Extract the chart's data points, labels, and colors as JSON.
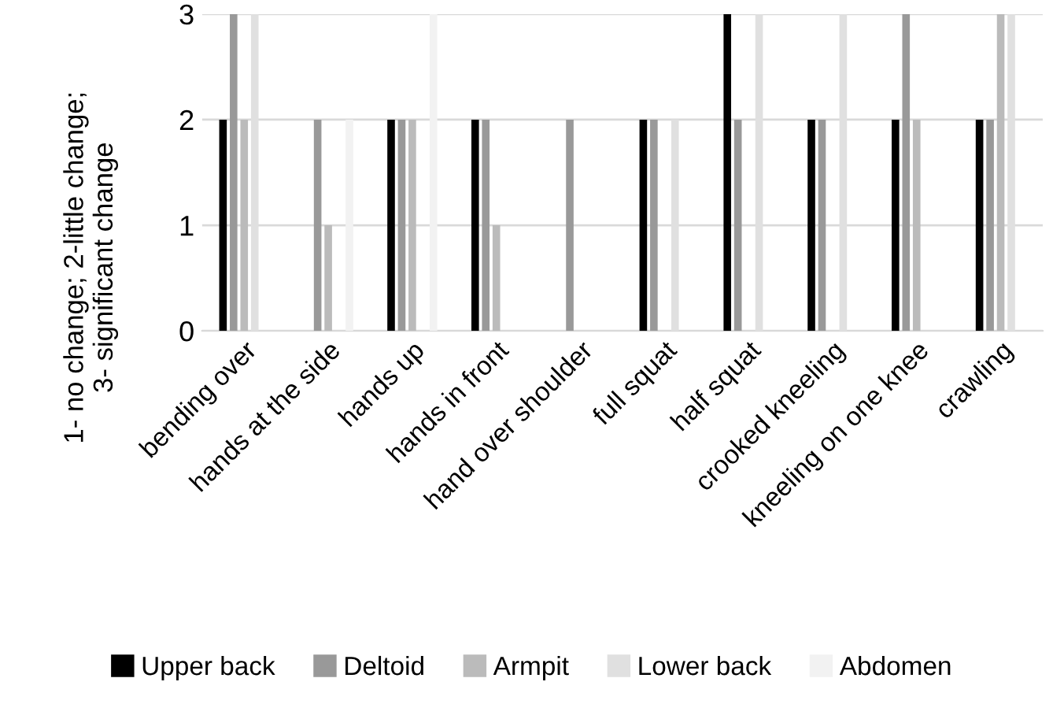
{
  "chart_data": {
    "type": "bar",
    "ylabel": "1- no change; 2-little change;\n3- significant change",
    "categories": [
      "bending over",
      "hands at the side",
      "hands up",
      "hands in front",
      "hand over shoulder",
      "full squat",
      "half squat",
      "crooked kneeling",
      "kneeling on one knee",
      "crawling"
    ],
    "series": [
      {
        "name": "Upper back",
        "color": "#000000",
        "values": [
          2,
          0,
          2,
          2,
          0,
          2,
          3,
          2,
          2,
          2
        ]
      },
      {
        "name": "Deltoid",
        "color": "#999999",
        "values": [
          3,
          2,
          2,
          2,
          2,
          2,
          2,
          2,
          3,
          2
        ]
      },
      {
        "name": "Armpit",
        "color": "#bbbbbb",
        "values": [
          2,
          1,
          2,
          1,
          0,
          0,
          0,
          0,
          2,
          3
        ]
      },
      {
        "name": "Lower back",
        "color": "#e0e0e0",
        "values": [
          3,
          0,
          0,
          0,
          0,
          2,
          3,
          3,
          0,
          3
        ]
      },
      {
        "name": "Abdomen",
        "color": "#f2f2f2",
        "values": [
          0,
          2,
          3,
          0,
          0,
          0,
          0,
          0,
          0,
          0
        ]
      }
    ],
    "ylim": [
      0,
      3
    ],
    "yticks": [
      0,
      1,
      2,
      3
    ],
    "grid": "y",
    "legend": "bottom"
  }
}
